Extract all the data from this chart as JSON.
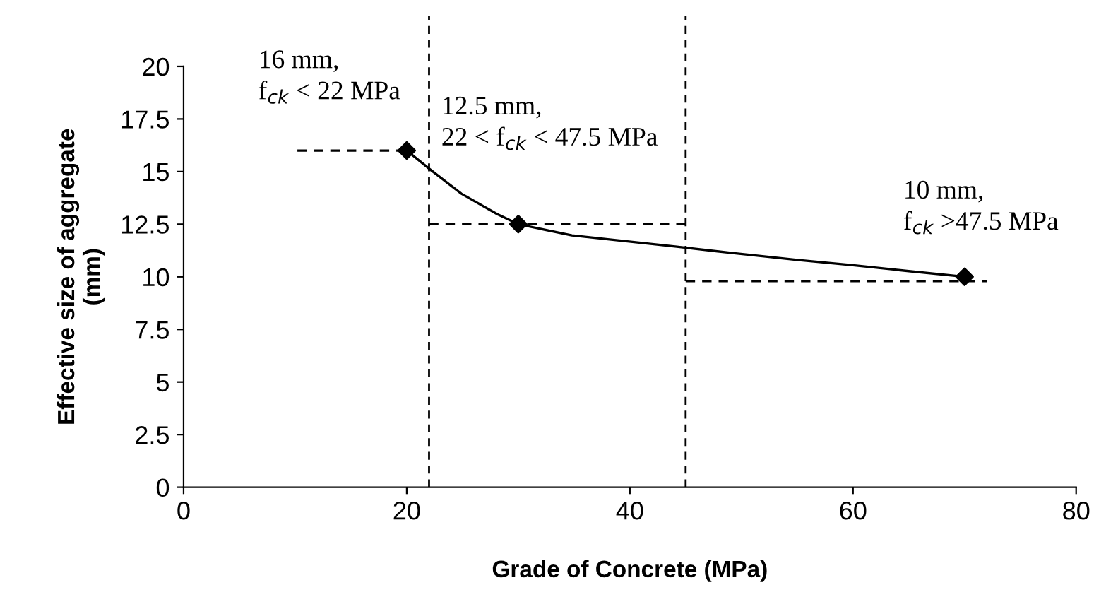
{
  "chart_data": {
    "type": "line",
    "xlabel": "Grade of Concrete (MPa)",
    "ylabel": "Effective size of aggregate\n(mm)",
    "xlim": [
      0,
      80
    ],
    "xticks": [
      0,
      20,
      40,
      60,
      80
    ],
    "ylim": [
      0,
      20
    ],
    "yticks": [
      0,
      2.5,
      5,
      7.5,
      10,
      12.5,
      15,
      17.5,
      20
    ],
    "grid": false,
    "series": [
      {
        "color": "#000000",
        "marker": "none",
        "line_style": "solid",
        "x": [
          20,
          22.1,
          24.9,
          28.1,
          30,
          34.8,
          44.2,
          49.2,
          55,
          60,
          65,
          70
        ],
        "values": [
          16,
          15.1,
          13.95,
          12.98,
          12.5,
          11.97,
          11.43,
          11.13,
          10.8,
          10.55,
          10.27,
          10
        ]
      },
      {
        "type": "scatter",
        "color": "#000000",
        "marker": "diamond",
        "x": [
          20,
          30,
          70
        ],
        "values": [
          16,
          12.5,
          10
        ]
      },
      {
        "type": "line",
        "color": "#000000",
        "marker": "none",
        "line_style": "dashed",
        "x": [
          10.2,
          19.3,
          null,
          22,
          45,
          null,
          45,
          72
        ],
        "values": [
          16,
          16,
          null,
          12.5,
          12.5,
          null,
          9.8,
          9.8
        ]
      }
    ],
    "ref_lines": [
      {
        "axis": "x",
        "value": 22,
        "color": "#000000",
        "line_style": "dashed"
      },
      {
        "axis": "x",
        "value": 45,
        "color": "#000000",
        "line_style": "dashed"
      }
    ],
    "annotations": [
      "16 mm,\nf$_{ck}$ < 22 MPa",
      "12.5 mm,\n22 < f$_{ck}$ < 47.5 MPa",
      "10 mm,\nf$_{ck}$ >47.5 MPa"
    ]
  }
}
